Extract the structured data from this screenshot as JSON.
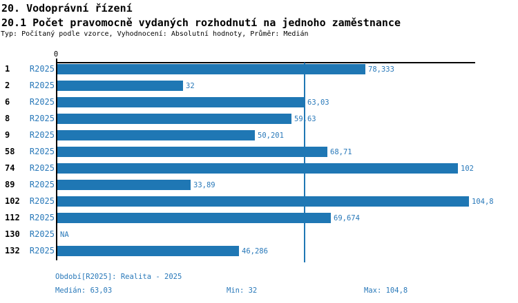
{
  "header": {
    "title": "20. Vodoprávní řízení",
    "subtitle": "20.1 Počet pravomocně vydaných rozhodnutí na jednoho zaměstnance",
    "meta": "Typ: Počítaný podle vzorce, Vyhodnocení: Absolutní hodnoty, Průměr: Medián"
  },
  "chart_data": {
    "type": "bar",
    "orientation": "horizontal",
    "title": "20.1 Počet pravomocně vydaných rozhodnutí na jednoho zaměstnance",
    "categories": [
      "1",
      "2",
      "6",
      "8",
      "9",
      "58",
      "74",
      "89",
      "102",
      "112",
      "130",
      "132"
    ],
    "series": [
      {
        "name": "R2025",
        "values": [
          78.333,
          32,
          63.03,
          59.63,
          50.201,
          68.71,
          102,
          33.89,
          104.8,
          69.674,
          null,
          46.286
        ],
        "value_labels": [
          "78,333",
          "32",
          "63,03",
          "59,63",
          "50,201",
          "68,71",
          "102",
          "33,89",
          "104,8",
          "69,674",
          "NA",
          "46,286"
        ]
      }
    ],
    "axis_origin_label": "0",
    "xlim": [
      0,
      106.2
    ],
    "median_value": 63.03,
    "grid": false,
    "legend_position": "none",
    "bar_color": "#1f77b4",
    "median_line_color": "#1f77b4"
  },
  "footer": {
    "period": "Období[R2025]: Realita - 2025",
    "median": "Medián: 63,03",
    "min": "Min: 32",
    "max": "Max: 104,8"
  }
}
